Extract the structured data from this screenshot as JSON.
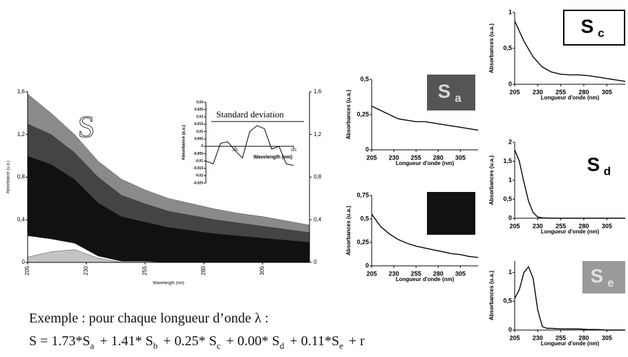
{
  "chart_data": [
    {
      "type": "area",
      "xlabel": "Wavelength (nm)",
      "ylabel": "Absorbance (u.a.)",
      "annotation": "S",
      "x": [
        205,
        215,
        225,
        235,
        245,
        255,
        265,
        275,
        285,
        295,
        305,
        315,
        325
      ],
      "series": [
        {
          "color": "#c4c4c4",
          "values": [
            0.05,
            0.1,
            0.12,
            0.04,
            0,
            0,
            0,
            0,
            0,
            0,
            0,
            0,
            0
          ]
        },
        {
          "color": "#ffffff",
          "values": [
            0.2,
            0.12,
            0.06,
            0.02,
            0.01,
            0.01,
            0,
            0,
            0,
            0,
            0,
            0,
            0
          ]
        },
        {
          "color": "#111111",
          "values": [
            0.75,
            0.7,
            0.6,
            0.5,
            0.42,
            0.37,
            0.33,
            0.3,
            0.27,
            0.25,
            0.23,
            0.21,
            0.19
          ]
        },
        {
          "color": "#444444",
          "values": [
            0.3,
            0.28,
            0.25,
            0.24,
            0.2,
            0.17,
            0.15,
            0.14,
            0.13,
            0.12,
            0.11,
            0.1,
            0.09
          ]
        },
        {
          "color": "#8a8a8a",
          "values": [
            0.28,
            0.2,
            0.17,
            0.15,
            0.15,
            0.13,
            0.12,
            0.11,
            0.1,
            0.09,
            0.09,
            0.08,
            0.07
          ]
        }
      ],
      "xlim": [
        205,
        325
      ],
      "xticks": [
        205,
        230,
        255,
        280,
        305
      ],
      "ylim": [
        0,
        1.6
      ],
      "yticks": [
        0,
        {
          "value": 0.4,
          "label": "0,4"
        },
        {
          "value": 0.8,
          "label": "0,8"
        },
        {
          "value": 1.2,
          "label": "1,2"
        },
        {
          "value": 1.6,
          "label": "1,6"
        }
      ],
      "y2lim": [
        0,
        1.6
      ],
      "y2ticks": [
        0,
        {
          "value": 0.4,
          "label": "0,4"
        },
        {
          "value": 0.8,
          "label": "0,8"
        },
        {
          "value": 1.2,
          "label": "1,2"
        },
        {
          "value": 1.6,
          "label": "1,6"
        }
      ]
    },
    {
      "type": "line",
      "title": "Standard deviation",
      "xlabel": "Wavelength (nm)",
      "ylabel": "Absorbance (a.u.)",
      "x": [
        205,
        215,
        225,
        235,
        245,
        255,
        265,
        275,
        285,
        295,
        305,
        315,
        325
      ],
      "series": [
        {
          "color": "#000000",
          "values": [
            -0.01,
            -0.012,
            0.002,
            0.003,
            -0.003,
            -0.008,
            0.01,
            0.014,
            0.012,
            -0.002,
            0.0,
            -0.012,
            -0.013
          ]
        }
      ],
      "xlim": [
        205,
        325
      ],
      "xticks": [
        245,
        325
      ],
      "ylim": [
        -0.025,
        0.03
      ],
      "yticks": [
        {
          "value": -0.025,
          "label": "-0,025"
        },
        {
          "value": -0.02,
          "label": "-0,02"
        },
        {
          "value": -0.015,
          "label": "-0,015"
        },
        {
          "value": -0.01,
          "label": "-0,01"
        },
        {
          "value": -0.005,
          "label": "-0,005"
        },
        0,
        {
          "value": 0.005,
          "label": "0,005"
        },
        {
          "value": 0.01,
          "label": "0,01"
        },
        {
          "value": 0.015,
          "label": "0,015"
        },
        {
          "value": 0.02,
          "label": "0,02"
        },
        {
          "value": 0.025,
          "label": "0,025"
        },
        {
          "value": 0.03,
          "label": "0,03"
        }
      ]
    },
    {
      "type": "line",
      "label": "S",
      "label_sub": "a",
      "xlabel": "Longueur d'onde (nm)",
      "ylabel": "Absorbances (u.a.)",
      "x": [
        205,
        215,
        225,
        235,
        245,
        255,
        265,
        275,
        285,
        295,
        305,
        315,
        325
      ],
      "series": [
        {
          "color": "#000000",
          "values": [
            0.31,
            0.28,
            0.25,
            0.22,
            0.21,
            0.2,
            0.2,
            0.19,
            0.18,
            0.17,
            0.16,
            0.15,
            0.14
          ]
        }
      ],
      "xlim": [
        205,
        325
      ],
      "xticks": [
        205,
        230,
        255,
        280,
        305
      ],
      "ylim": [
        0,
        0.5
      ],
      "yticks": [
        0,
        {
          "value": 0.25,
          "label": "0,25"
        },
        {
          "value": 0.5,
          "label": "0,5"
        }
      ]
    },
    {
      "type": "line",
      "xlabel": "Longueur d'onde (nm)",
      "ylabel": "Absorbances (u.a.)",
      "x": [
        205,
        215,
        225,
        235,
        245,
        255,
        265,
        275,
        285,
        295,
        305,
        315,
        325
      ],
      "series": [
        {
          "color": "#000000",
          "values": [
            0.55,
            0.42,
            0.34,
            0.28,
            0.24,
            0.21,
            0.19,
            0.17,
            0.15,
            0.13,
            0.12,
            0.1,
            0.09
          ]
        }
      ],
      "xlim": [
        205,
        325
      ],
      "xticks": [
        205,
        230,
        255,
        280,
        305
      ],
      "ylim": [
        0,
        0.75
      ],
      "yticks": [
        0,
        {
          "value": 0.25,
          "label": "0,25"
        },
        {
          "value": 0.5,
          "label": "0,5"
        },
        {
          "value": 0.75,
          "label": "0,75"
        }
      ]
    },
    {
      "type": "line",
      "label": "S",
      "label_sub": "c",
      "xlabel": "Longueur d'onde (nm)",
      "ylabel": "Absorbances (u.a.)",
      "x": [
        205,
        215,
        225,
        235,
        245,
        255,
        265,
        275,
        285,
        295,
        305,
        315,
        325
      ],
      "series": [
        {
          "color": "#000000",
          "values": [
            0.88,
            0.6,
            0.38,
            0.24,
            0.17,
            0.14,
            0.13,
            0.13,
            0.12,
            0.1,
            0.08,
            0.06,
            0.04
          ]
        }
      ],
      "xlim": [
        205,
        325
      ],
      "xticks": [
        205,
        230,
        255,
        280,
        305
      ],
      "ylim": [
        0,
        1
      ],
      "yticks": [
        0,
        {
          "value": 0.5,
          "label": "0,5"
        },
        1
      ]
    },
    {
      "type": "line",
      "label": "S",
      "label_sub": "d",
      "xlabel": "Longueur d'onde (nm)",
      "ylabel": "Absorbances (u.a.)",
      "x": [
        205,
        210,
        215,
        220,
        225,
        230,
        235,
        245,
        255,
        265,
        275,
        285,
        295,
        305,
        315,
        325
      ],
      "series": [
        {
          "color": "#000000",
          "values": [
            1.8,
            1.5,
            0.95,
            0.45,
            0.15,
            0.03,
            0.01,
            0,
            0,
            0,
            0,
            0,
            0,
            0,
            0,
            0
          ]
        }
      ],
      "xlim": [
        205,
        325
      ],
      "xticks": [
        205,
        230,
        255,
        280,
        305
      ],
      "ylim": [
        0,
        2
      ],
      "yticks": [
        0,
        {
          "value": 0.5,
          "label": "0,5"
        },
        1,
        {
          "value": 1.5,
          "label": "1,5"
        },
        2
      ]
    },
    {
      "type": "line",
      "label": "S",
      "label_sub": "e",
      "xlabel": "Longueur d'onde (nm)",
      "ylabel": "Absorbances (u.a.)",
      "x": [
        205,
        210,
        215,
        220,
        225,
        230,
        235,
        240,
        245,
        255,
        265,
        275,
        285,
        295,
        305,
        315,
        325
      ],
      "series": [
        {
          "color": "#000000",
          "values": [
            0.55,
            0.7,
            1.0,
            1.1,
            0.9,
            0.35,
            0.06,
            0.03,
            0.03,
            0.02,
            0.02,
            0.02,
            0.01,
            0.01,
            0,
            0,
            0
          ]
        }
      ],
      "xlim": [
        205,
        325
      ],
      "xticks": [
        205,
        230,
        255,
        280,
        305
      ],
      "ylim": [
        0,
        1.2
      ],
      "yticks": [
        0,
        {
          "value": 0.5,
          "label": "0,5"
        },
        1
      ]
    }
  ],
  "caption": {
    "intro": "Exemple : pour chaque longueur d’onde λ :",
    "equation": [
      {
        "text": "S = 1.73*S",
        "sub": "a"
      },
      {
        "text": "+ 1.41* S",
        "sub": "b"
      },
      {
        "text": "+ 0.25* S",
        "sub": "c"
      },
      {
        "text": "+ 0.00* S",
        "sub": "d"
      },
      {
        "text": "+ 0.11*S",
        "sub": "e"
      },
      {
        "text": "+ r"
      }
    ]
  }
}
